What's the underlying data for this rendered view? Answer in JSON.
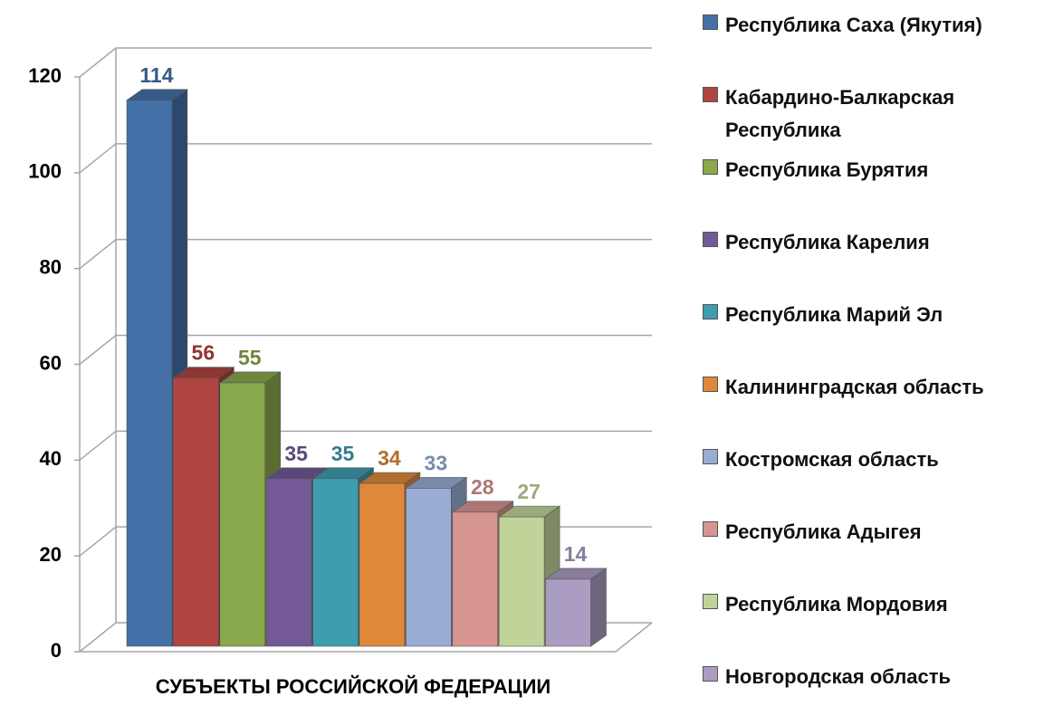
{
  "chart_data": {
    "type": "bar3d",
    "x_label": "СУБЪЕКТЫ РОССИЙСКОЙ ФЕДЕРАЦИИ",
    "ylim": [
      0,
      120
    ],
    "yticks": [
      0,
      20,
      40,
      60,
      80,
      100,
      120
    ],
    "grid": true,
    "legend": "right",
    "series": [
      {
        "name": "Республика Саха (Якутия)",
        "color": "#4470a8",
        "values": [
          114
        ]
      },
      {
        "name": "Кабардино-Балкарская Республика",
        "color": "#b04440",
        "values": [
          56
        ]
      },
      {
        "name": "Республика Бурятия",
        "color": "#8aa84c",
        "values": [
          55
        ]
      },
      {
        "name": "Республика Карелия",
        "color": "#735a96",
        "values": [
          35
        ]
      },
      {
        "name": "Республика Марий Эл",
        "color": "#3f9db0",
        "values": [
          35
        ]
      },
      {
        "name": "Калининградская область",
        "color": "#e0883a",
        "values": [
          34
        ]
      },
      {
        "name": "Костромская область",
        "color": "#98acd4",
        "values": [
          33
        ]
      },
      {
        "name": "Республика Адыгея",
        "color": "#d79592",
        "values": [
          28
        ]
      },
      {
        "name": "Республика Мордовия",
        "color": "#c0d49a",
        "values": [
          27
        ]
      },
      {
        "name": "Новгородская область",
        "color": "#ab9dc2",
        "values": [
          14
        ]
      }
    ]
  }
}
